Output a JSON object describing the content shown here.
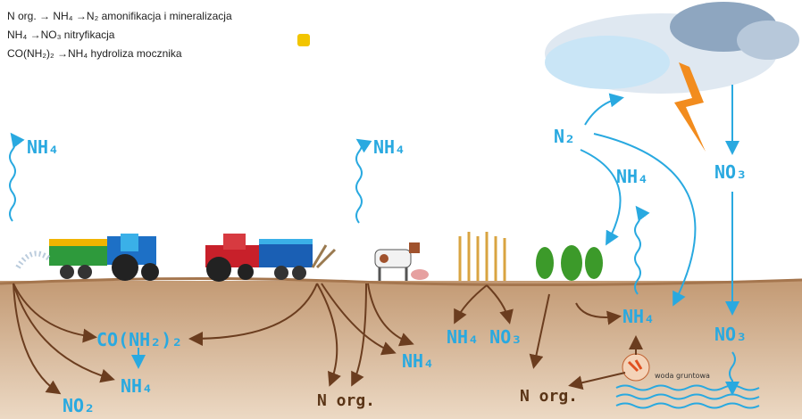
{
  "legend": [
    "N org. → NH₄ →N₂ amonifikacja i mineralizacja",
    "NH₄ →NO₃ nitryfikacja",
    "CO(NH₂)₂ →NH₄ hydroliza mocznika"
  ],
  "labels": {
    "nh4_left_air": "NH₄",
    "nh4_mid_air": "NH₄",
    "n2": "N₂",
    "nh4_right_air": "NH₄",
    "no3_sky": "NO₃",
    "no3_soil": "NO₃",
    "nh4_roots": "NH₄",
    "urea": "CO(NH₂)₂",
    "nh4_left_soil": "NH₄",
    "no2": "NO₂",
    "norg_mid": "N org.",
    "nh4_mid_soil": "NH₄",
    "nh4_no3": "NH₄ NO₃",
    "norg_right": "N org.",
    "groundwater": "woda gruntowa"
  }
}
